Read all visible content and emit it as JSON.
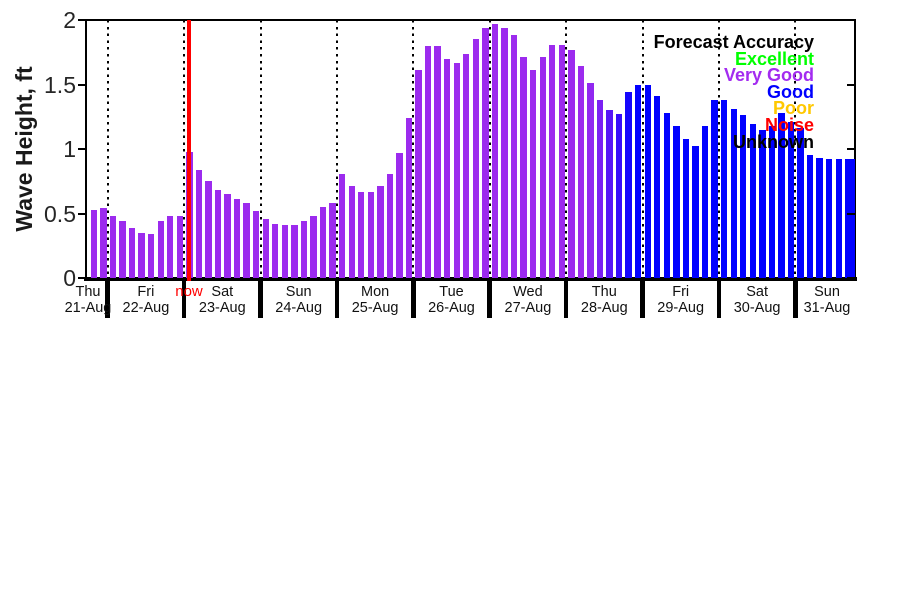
{
  "colors": {
    "background": "#FFFFFF",
    "axis_text": "#262626",
    "very_good_bar": "#9C2BEE",
    "good_bar": "#0000FF",
    "now_line": "#FF0000"
  },
  "chart_data": {
    "type": "bar",
    "title": "",
    "ylabel": "Wave Height, ft",
    "units": "ft",
    "ylim": [
      0,
      2
    ],
    "yticks": [
      {
        "value": 0,
        "label": "0"
      },
      {
        "value": 0.5,
        "label": "0.5"
      },
      {
        "value": 1,
        "label": "1"
      },
      {
        "value": 1.5,
        "label": "1.5"
      },
      {
        "value": 2,
        "label": "2"
      }
    ],
    "bar_interval_hours": 3,
    "grid": "vertical dotted lines at day boundaries",
    "days": [
      {
        "day": "Thu",
        "date": "21-Aug",
        "start_slot": 6,
        "color": "#9C2BEE",
        "values": [
          0.53,
          0.54
        ]
      },
      {
        "day": "Fri",
        "date": "22-Aug",
        "start_slot": 0,
        "color": "#9C2BEE",
        "values": [
          0.48,
          0.44,
          0.39,
          0.35,
          0.34,
          0.44,
          0.48,
          0.48
        ]
      },
      {
        "day": "Sat",
        "date": "23-Aug",
        "start_slot": 0,
        "color": "#9C2BEE",
        "values": [
          0.98,
          0.84,
          0.75,
          0.68,
          0.65,
          0.61,
          0.58,
          0.52
        ]
      },
      {
        "day": "Sun",
        "date": "24-Aug",
        "start_slot": 0,
        "color": "#9C2BEE",
        "values": [
          0.46,
          0.42,
          0.41,
          0.41,
          0.44,
          0.48,
          0.55,
          0.58
        ]
      },
      {
        "day": "Mon",
        "date": "25-Aug",
        "start_slot": 0,
        "color": "#9C2BEE",
        "values": [
          0.81,
          0.71,
          0.67,
          0.67,
          0.71,
          0.81,
          0.97,
          1.24
        ]
      },
      {
        "day": "Tue",
        "date": "26-Aug",
        "start_slot": 0,
        "color": "#9C2BEE",
        "values": [
          1.61,
          1.8,
          1.8,
          1.7,
          1.67,
          1.74,
          1.85,
          1.94
        ]
      },
      {
        "day": "Wed",
        "date": "27-Aug",
        "start_slot": 0,
        "color": "#9C2BEE",
        "values": [
          1.97,
          1.94,
          1.88,
          1.71,
          1.61,
          1.71,
          1.81,
          1.81
        ]
      },
      {
        "day": "Thu",
        "date": "28-Aug",
        "start_slot": 0,
        "color": "#9C2BEE",
        "colors": [
          "#9C2BEE",
          "#9C2BEE",
          "#9128F0",
          "#7B20F3",
          "#5716F6",
          "#370DFA",
          "#1506FD",
          "#0301FF"
        ],
        "values": [
          1.77,
          1.64,
          1.51,
          1.38,
          1.3,
          1.27,
          1.44,
          1.5
        ]
      },
      {
        "day": "Fri",
        "date": "29-Aug",
        "start_slot": 0,
        "color": "#0000FF",
        "values": [
          1.5,
          1.41,
          1.28,
          1.18,
          1.08,
          1.02,
          1.18,
          1.38
        ]
      },
      {
        "day": "Sat",
        "date": "30-Aug",
        "start_slot": 0,
        "color": "#0000FF",
        "values": [
          1.38,
          1.31,
          1.26,
          1.19,
          1.15,
          1.18,
          1.28,
          1.21
        ]
      },
      {
        "day": "Sun",
        "date": "31-Aug",
        "start_slot": 0,
        "color": "#0000FF",
        "values": [
          1.16,
          0.95,
          0.93,
          0.92,
          0.92,
          0.92,
          0.92
        ]
      }
    ],
    "now_marker": {
      "label": "now",
      "color": "#FF0000",
      "position": "day boundary between Fri 22-Aug and Sat 23-Aug"
    },
    "legend": {
      "title": "Forecast Accuracy",
      "position": "top-right inside plot",
      "entries": [
        {
          "label": "Excellent",
          "color": "#00FF00"
        },
        {
          "label": "Very Good",
          "color": "#A32BF0"
        },
        {
          "label": "Good",
          "color": "#0000FF"
        },
        {
          "label": "Poor",
          "color": "#FFC800"
        },
        {
          "label": "Noise",
          "color": "#FF0000"
        },
        {
          "label": "Unknown",
          "color": "#000000"
        }
      ]
    }
  }
}
